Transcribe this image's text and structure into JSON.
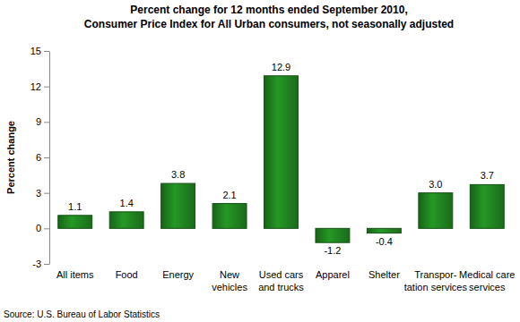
{
  "chart_data": {
    "type": "bar",
    "title": "Percent change for 12 months ended September 2010,",
    "subtitle": "Consumer Price Index for All Urban consumers, not seasonally adjusted",
    "y_label": "Percent change",
    "source": "Source: U.S. Bureau of Labor Statistics",
    "categories": [
      "All items",
      "Food",
      "Energy",
      "New\nvehicles",
      "Used\ncars\nand trucks",
      "Apparel",
      "Shelter",
      "Transpor-\ntation\nservices",
      "Medical\ncare\nservices"
    ],
    "values": [
      1.1,
      1.4,
      3.8,
      2.1,
      12.9,
      -1.2,
      -0.4,
      3.0,
      3.7
    ],
    "value_labels": [
      "1.1",
      "1.4",
      "3.8",
      "2.1",
      "12.9",
      "-1.2",
      "-0.4",
      "3.0",
      "3.7"
    ],
    "color": "#1e7b1e",
    "ylim": [
      -3,
      15
    ],
    "yticks": [
      -3,
      0,
      3,
      6,
      9,
      12,
      15
    ],
    "grid": false,
    "data_labels": true
  }
}
